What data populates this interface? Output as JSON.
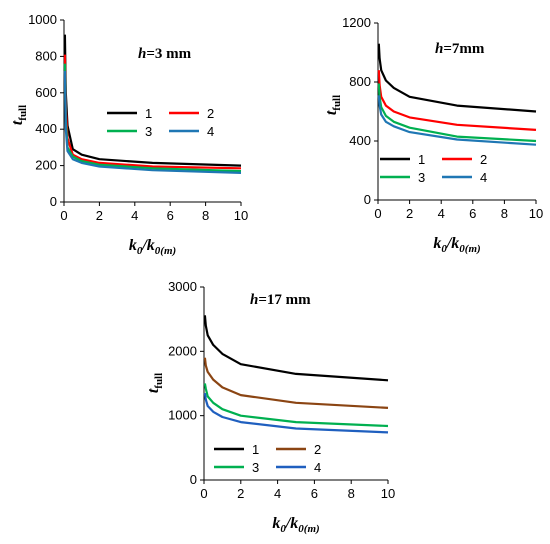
{
  "chart_data": [
    {
      "type": "line",
      "title": {
        "italic": "h",
        "rest": "=3 mm"
      },
      "xlabel": {
        "main": "k",
        "sub1": "0",
        "slash": "/k",
        "sub2": "0(m)"
      },
      "ylabel": {
        "main": "t",
        "sub": "full"
      },
      "xlim": [
        0,
        10
      ],
      "ylim": [
        0,
        1000
      ],
      "xticks": [
        "0",
        "2",
        "4",
        "6",
        "8",
        "10"
      ],
      "yticks": [
        "0",
        "200",
        "400",
        "600",
        "800",
        "1000"
      ],
      "x": [
        0.05,
        0.1,
        0.2,
        0.5,
        1,
        2,
        5,
        10
      ],
      "series": [
        {
          "name": "1",
          "color": "#000000",
          "values": [
            920,
            600,
            420,
            290,
            260,
            235,
            215,
            200
          ]
        },
        {
          "name": "2",
          "color": "#ff0000",
          "values": [
            810,
            520,
            350,
            260,
            235,
            215,
            195,
            185
          ]
        },
        {
          "name": "3",
          "color": "#00b050",
          "values": [
            760,
            450,
            300,
            250,
            225,
            205,
            185,
            170
          ]
        },
        {
          "name": "4",
          "color": "#1f77b4",
          "values": [
            720,
            400,
            280,
            235,
            215,
            195,
            175,
            160
          ]
        }
      ]
    },
    {
      "type": "line",
      "title": {
        "italic": "h",
        "rest": "=7mm"
      },
      "xlabel": {
        "main": "k",
        "sub1": "0",
        "slash": "/k",
        "sub2": "0(m)"
      },
      "ylabel": {
        "main": "t",
        "sub": "full"
      },
      "xlim": [
        0,
        10
      ],
      "ylim": [
        0,
        1200
      ],
      "xticks": [
        "0",
        "2",
        "4",
        "6",
        "8",
        "10"
      ],
      "yticks": [
        "0",
        "400",
        "800",
        "1200"
      ],
      "x": [
        0.05,
        0.1,
        0.2,
        0.5,
        1,
        2,
        5,
        10
      ],
      "series": [
        {
          "name": "1",
          "color": "#000000",
          "values": [
            1060,
            960,
            880,
            810,
            760,
            700,
            640,
            600
          ]
        },
        {
          "name": "2",
          "color": "#ff0000",
          "values": [
            880,
            780,
            700,
            640,
            600,
            560,
            510,
            475
          ]
        },
        {
          "name": "3",
          "color": "#00b050",
          "values": [
            790,
            700,
            630,
            570,
            530,
            490,
            430,
            400
          ]
        },
        {
          "name": "4",
          "color": "#1f77b4",
          "values": [
            710,
            640,
            580,
            530,
            500,
            460,
            410,
            375
          ]
        }
      ]
    },
    {
      "type": "line",
      "title": {
        "italic": "h",
        "rest": "=17 mm"
      },
      "xlabel": {
        "main": "k",
        "sub1": "0",
        "slash": "/k",
        "sub2": "0(m)"
      },
      "ylabel": {
        "main": "t",
        "sub": "full"
      },
      "xlim": [
        0,
        10
      ],
      "ylim": [
        0,
        3000
      ],
      "xticks": [
        "0",
        "2",
        "4",
        "6",
        "8",
        "10"
      ],
      "yticks": [
        "0",
        "1000",
        "2000",
        "3000"
      ],
      "x": [
        0.05,
        0.1,
        0.2,
        0.5,
        1,
        2,
        5,
        10
      ],
      "series": [
        {
          "name": "1",
          "color": "#000000",
          "values": [
            2560,
            2400,
            2250,
            2100,
            1960,
            1800,
            1650,
            1550
          ]
        },
        {
          "name": "2",
          "color": "#8b4513",
          "values": [
            1900,
            1780,
            1680,
            1560,
            1440,
            1320,
            1200,
            1120
          ]
        },
        {
          "name": "3",
          "color": "#00b050",
          "values": [
            1500,
            1420,
            1300,
            1200,
            1100,
            1000,
            900,
            840
          ]
        },
        {
          "name": "4",
          "color": "#1f5fbf",
          "values": [
            1350,
            1250,
            1150,
            1060,
            980,
            900,
            800,
            740
          ]
        }
      ]
    }
  ]
}
